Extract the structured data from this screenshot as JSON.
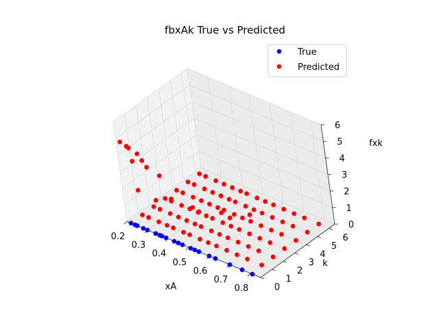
{
  "chart_data": {
    "type": "scatter",
    "projection": "3d",
    "title": "fbxAk True vs Predicted",
    "xlabel": "xA",
    "ylabel": "k",
    "zlabel": "fxk",
    "xlim": [
      0.2,
      0.85
    ],
    "ylim": [
      0,
      6.5
    ],
    "zlim": [
      0,
      6
    ],
    "x_ticks": [
      "0.2",
      "0.3",
      "0.4",
      "0.5",
      "0.6",
      "0.7",
      "0.8"
    ],
    "y_ticks": [
      "0",
      "1",
      "2",
      "3",
      "4",
      "5",
      "6"
    ],
    "z_ticks": [
      "0",
      "1",
      "2",
      "3",
      "4",
      "5",
      "6"
    ],
    "grid": true,
    "legend_position": "top-right",
    "series": [
      {
        "name": "True",
        "color": "#0000ff",
        "points": [
          [
            0.22,
            0,
            0
          ],
          [
            0.24,
            0,
            0
          ],
          [
            0.25,
            0,
            0
          ],
          [
            0.28,
            0,
            0
          ],
          [
            0.3,
            0,
            0
          ],
          [
            0.34,
            0,
            0
          ],
          [
            0.36,
            0,
            0
          ],
          [
            0.37,
            0,
            0
          ],
          [
            0.39,
            0,
            0
          ],
          [
            0.43,
            0,
            0
          ],
          [
            0.45,
            0,
            0
          ],
          [
            0.47,
            0,
            0
          ],
          [
            0.51,
            0,
            0
          ],
          [
            0.53,
            0,
            0
          ],
          [
            0.55,
            0,
            0
          ],
          [
            0.6,
            0,
            0
          ],
          [
            0.63,
            0,
            0
          ],
          [
            0.7,
            0,
            0
          ],
          [
            0.76,
            0,
            0
          ],
          [
            0.81,
            0,
            0
          ]
        ]
      },
      {
        "name": "Predicted",
        "color": "#ff0000",
        "points": [
          [
            0.22,
            1,
            0
          ],
          [
            0.25,
            1,
            0
          ],
          [
            0.3,
            1,
            0
          ],
          [
            0.34,
            1,
            0
          ],
          [
            0.37,
            1,
            0
          ],
          [
            0.42,
            1,
            0
          ],
          [
            0.45,
            1,
            0
          ],
          [
            0.5,
            1,
            0
          ],
          [
            0.54,
            1,
            0
          ],
          [
            0.58,
            1,
            0
          ],
          [
            0.63,
            1,
            0
          ],
          [
            0.68,
            1,
            0
          ],
          [
            0.73,
            1,
            0
          ],
          [
            0.8,
            1,
            0
          ],
          [
            0.22,
            2,
            0
          ],
          [
            0.25,
            2,
            0
          ],
          [
            0.3,
            2,
            0
          ],
          [
            0.34,
            2,
            0
          ],
          [
            0.38,
            2,
            0
          ],
          [
            0.42,
            2,
            0
          ],
          [
            0.45,
            2,
            0
          ],
          [
            0.5,
            2,
            0
          ],
          [
            0.54,
            2,
            0
          ],
          [
            0.58,
            2,
            0
          ],
          [
            0.63,
            2,
            0
          ],
          [
            0.68,
            2,
            0
          ],
          [
            0.73,
            2,
            0
          ],
          [
            0.8,
            2,
            0
          ],
          [
            0.22,
            3,
            0
          ],
          [
            0.25,
            3,
            0
          ],
          [
            0.3,
            3,
            0
          ],
          [
            0.34,
            3,
            0
          ],
          [
            0.38,
            3,
            0
          ],
          [
            0.42,
            3,
            0
          ],
          [
            0.45,
            3,
            0
          ],
          [
            0.5,
            3,
            0
          ],
          [
            0.54,
            3,
            0
          ],
          [
            0.58,
            3,
            0
          ],
          [
            0.63,
            3,
            0
          ],
          [
            0.68,
            3,
            0
          ],
          [
            0.73,
            3,
            0
          ],
          [
            0.8,
            3,
            0
          ],
          [
            0.22,
            4,
            0
          ],
          [
            0.25,
            4,
            0
          ],
          [
            0.3,
            4,
            0
          ],
          [
            0.34,
            4,
            0
          ],
          [
            0.38,
            4,
            0
          ],
          [
            0.42,
            4,
            0
          ],
          [
            0.45,
            4,
            0
          ],
          [
            0.5,
            4,
            0
          ],
          [
            0.54,
            4,
            0
          ],
          [
            0.58,
            4,
            0
          ],
          [
            0.63,
            4,
            0
          ],
          [
            0.68,
            4,
            0
          ],
          [
            0.73,
            4,
            0
          ],
          [
            0.8,
            4,
            0
          ],
          [
            0.22,
            5,
            0
          ],
          [
            0.25,
            5,
            0
          ],
          [
            0.3,
            5,
            0
          ],
          [
            0.34,
            5,
            0
          ],
          [
            0.38,
            5,
            0
          ],
          [
            0.42,
            5,
            0
          ],
          [
            0.45,
            5,
            0
          ],
          [
            0.5,
            5,
            0
          ],
          [
            0.54,
            5,
            0
          ],
          [
            0.58,
            5,
            0
          ],
          [
            0.63,
            5,
            0
          ],
          [
            0.68,
            5,
            0
          ],
          [
            0.73,
            5,
            0
          ],
          [
            0.8,
            5,
            0
          ],
          [
            0.22,
            6,
            0
          ],
          [
            0.25,
            6,
            0
          ],
          [
            0.3,
            6,
            0
          ],
          [
            0.34,
            6,
            0
          ],
          [
            0.38,
            6,
            0
          ],
          [
            0.42,
            6,
            0
          ],
          [
            0.45,
            6,
            0
          ],
          [
            0.5,
            6,
            0
          ],
          [
            0.54,
            6,
            0
          ],
          [
            0.58,
            6,
            0
          ],
          [
            0.63,
            6,
            0
          ],
          [
            0.68,
            6,
            0
          ],
          [
            0.73,
            6,
            0
          ],
          [
            0.8,
            6,
            0
          ],
          [
            0.22,
            0,
            4.9
          ],
          [
            0.25,
            0,
            4.8
          ],
          [
            0.26,
            0,
            4.75
          ],
          [
            0.3,
            0,
            4.6
          ],
          [
            0.32,
            0,
            4.3
          ],
          [
            0.27,
            0,
            4.0
          ],
          [
            0.34,
            0,
            4.0
          ],
          [
            0.4,
            0,
            3.8
          ],
          [
            0.28,
            0,
            2.3
          ],
          [
            0.3,
            1,
            1.3
          ],
          [
            0.38,
            1,
            1.8
          ],
          [
            0.42,
            2,
            1.0
          ],
          [
            0.45,
            2,
            0.9
          ],
          [
            0.5,
            3,
            0.6
          ],
          [
            0.54,
            3,
            0.5
          ],
          [
            0.58,
            4,
            0.4
          ]
        ]
      }
    ]
  }
}
